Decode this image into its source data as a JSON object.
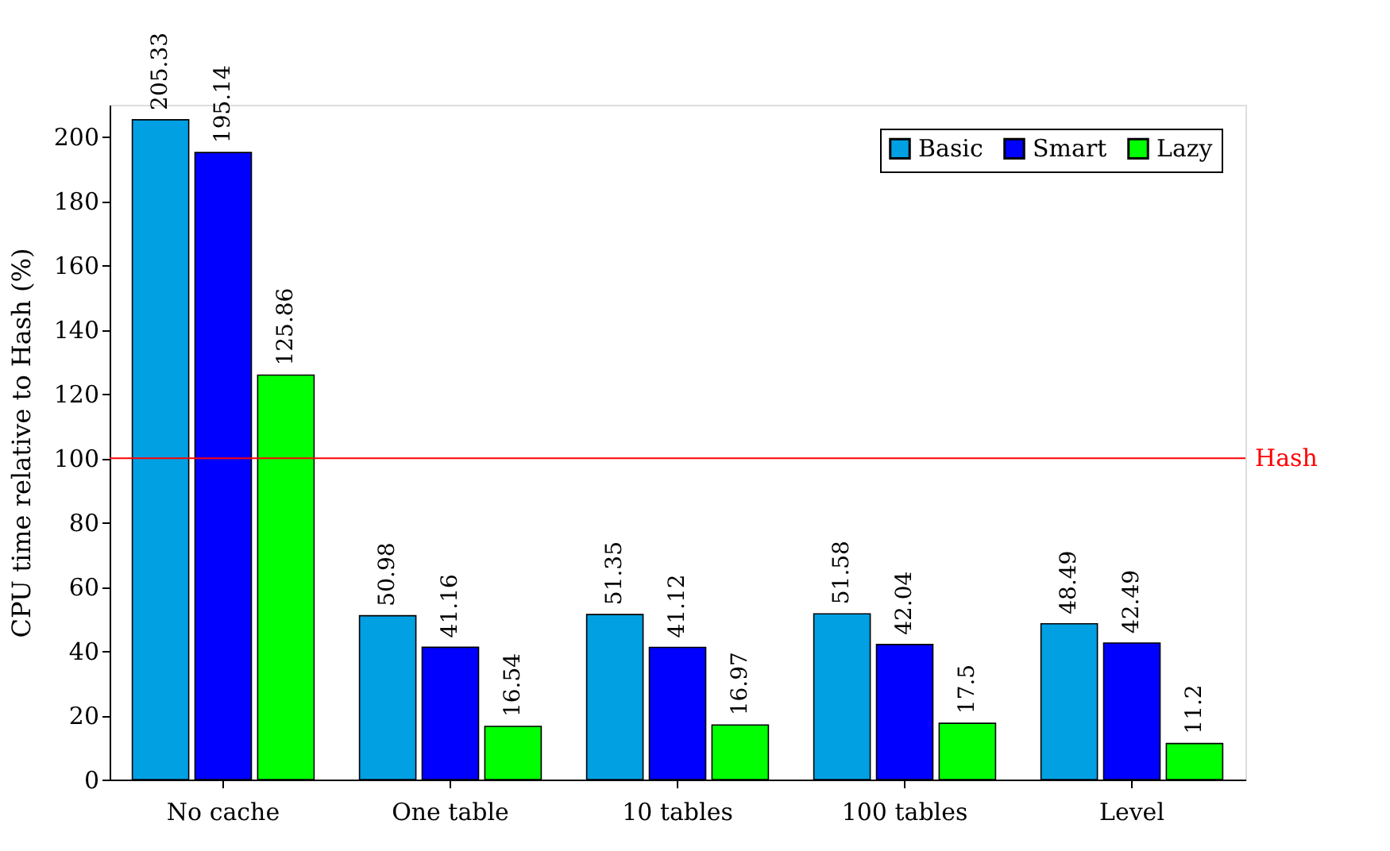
{
  "chart_data": {
    "type": "bar",
    "ylabel": "CPU time relative to Hash (%)",
    "categories": [
      "No cache",
      "One table",
      "10 tables",
      "100 tables",
      "Level"
    ],
    "series": [
      {
        "name": "Basic",
        "color": "#00a0e3",
        "values": [
          205.33,
          50.98,
          51.35,
          51.58,
          48.49
        ]
      },
      {
        "name": "Smart",
        "color": "#0000ff",
        "values": [
          195.14,
          41.16,
          41.12,
          42.04,
          42.49
        ]
      },
      {
        "name": "Lazy",
        "color": "#00ff00",
        "values": [
          125.86,
          16.54,
          16.97,
          17.5,
          11.2
        ]
      }
    ],
    "ylim": [
      0,
      210
    ],
    "yticks": [
      0,
      20,
      40,
      60,
      80,
      100,
      120,
      140,
      160,
      180,
      200
    ],
    "ref_lines": [
      {
        "axis": "y",
        "value": 100,
        "label": "Hash",
        "color": "#ff0000"
      }
    ],
    "data_labels": true,
    "legend": "top right",
    "grid": false
  }
}
